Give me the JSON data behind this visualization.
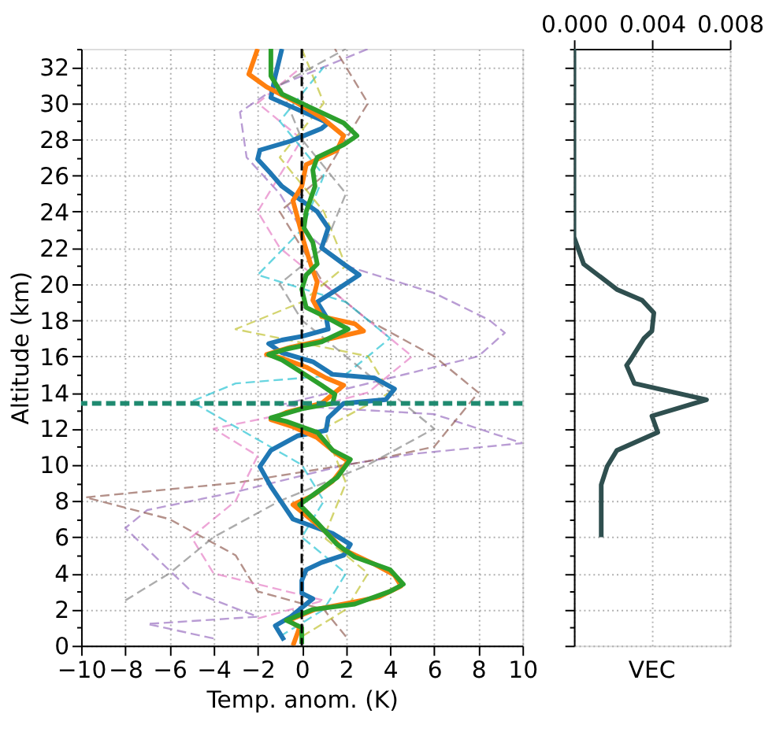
{
  "chart_data": [
    {
      "type": "line",
      "xlabel": "Temp. anom. (K)",
      "ylabel": "Altitude (km)",
      "xlim": [
        -10,
        10
      ],
      "ylim": [
        0,
        33
      ],
      "xticks": [
        {
          "value": -10,
          "label": "−10"
        },
        {
          "value": -8,
          "label": "−8"
        },
        {
          "value": -6,
          "label": "−6"
        },
        {
          "value": -4,
          "label": "−4"
        },
        {
          "value": -2,
          "label": "−2"
        },
        0,
        2,
        4,
        6,
        8,
        10
      ],
      "yticks": [
        0,
        {
          "value": 1,
          "label": null
        },
        2,
        {
          "value": 3,
          "label": null
        },
        4,
        {
          "value": 5,
          "label": null
        },
        6,
        {
          "value": 7,
          "label": null
        },
        8,
        {
          "value": 9,
          "label": null
        },
        10,
        {
          "value": 11,
          "label": null
        },
        12,
        {
          "value": 13,
          "label": null
        },
        14,
        {
          "value": 15,
          "label": null
        },
        16,
        {
          "value": 17,
          "label": null
        },
        18,
        {
          "value": 19,
          "label": null
        },
        20,
        {
          "value": 21,
          "label": null
        },
        22,
        {
          "value": 23,
          "label": null
        },
        24,
        {
          "value": 25,
          "label": null
        },
        26,
        {
          "value": 27,
          "label": null
        },
        28,
        {
          "value": 29,
          "label": null
        },
        30,
        {
          "value": 31,
          "label": null
        },
        32,
        {
          "value": 33,
          "label": null
        }
      ],
      "grid": true,
      "series": [
        {
          "color": "#9467bd",
          "line_style": "dashed",
          "x": [
            -4,
            -7,
            -2,
            -5,
            -8,
            -7,
            -3,
            2,
            5,
            10,
            6,
            -1,
            8,
            9.2,
            8.5,
            6,
            2,
            0,
            -1,
            -2.5,
            -2.8,
            -1,
            1,
            3
          ],
          "values": [
            0.4,
            1.2,
            1.6,
            3,
            6.5,
            7.5,
            8.5,
            10,
            10.6,
            11.2,
            12.8,
            13.3,
            16,
            17.3,
            18,
            19.5,
            21,
            23,
            25,
            27,
            29.5,
            31,
            32,
            33
          ]
        },
        {
          "color": "#8c564b",
          "line_style": "dashed",
          "x": [
            2,
            1,
            -2,
            -3,
            -6,
            -9.8,
            -3,
            3,
            6,
            8,
            6,
            3,
            1,
            0,
            -1,
            1,
            2,
            3,
            2,
            1.5
          ],
          "values": [
            0.5,
            2,
            3,
            5,
            7,
            8.2,
            9,
            10.2,
            11,
            14,
            16,
            18,
            20,
            22,
            24,
            26,
            28,
            30,
            32,
            33
          ]
        },
        {
          "color": "#e377c2",
          "line_style": "dashed",
          "x": [
            -2,
            1,
            -4,
            -5,
            -3,
            -2,
            -4,
            0,
            3,
            5,
            3,
            1,
            -1,
            -2,
            -1,
            0,
            -2,
            0
          ],
          "values": [
            1.5,
            2.5,
            4,
            6,
            8,
            10.5,
            12,
            13,
            14,
            16,
            18,
            20,
            22,
            24,
            26,
            28,
            30,
            32
          ]
        },
        {
          "color": "#17becf",
          "line_style": "dashed",
          "x": [
            -1,
            1,
            2,
            0,
            1,
            0,
            -5,
            -3,
            2,
            4,
            2,
            -2,
            0,
            1,
            -1,
            1
          ],
          "values": [
            0.5,
            2,
            4,
            6,
            8,
            10,
            13.5,
            14.5,
            15,
            17,
            19,
            20.5,
            23,
            26,
            29,
            32
          ]
        },
        {
          "color": "#bcbd22",
          "line_style": "dashed",
          "x": [
            0,
            2,
            3,
            1,
            2,
            1,
            4,
            3,
            -3,
            0,
            2,
            1,
            -1,
            1,
            0
          ],
          "values": [
            0.5,
            2,
            4,
            6,
            9,
            12,
            14,
            16,
            17.5,
            19,
            21,
            24,
            27,
            30,
            33
          ]
        },
        {
          "color": "#7f7f7f",
          "line_style": "dashed",
          "x": [
            -8,
            -6,
            -4,
            -1,
            3,
            6,
            4,
            2,
            0,
            -1,
            1,
            2,
            0,
            -1,
            2
          ],
          "values": [
            2.5,
            4,
            6,
            8,
            10,
            12,
            14,
            16,
            18,
            20,
            22,
            25,
            28,
            31,
            33
          ]
        },
        {
          "color": "#1f77b4",
          "line_style": "solid",
          "x": [
            -0.8,
            -1.2,
            -0.5,
            0.5,
            0,
            0,
            0.2,
            0.9,
            1.9,
            2.2,
            1.4,
            0.5,
            -0.4,
            -0.9,
            -1.4,
            -1.9,
            -1.4,
            -0.2,
            1.1,
            1.2,
            1.9,
            3.8,
            4.2,
            3.3,
            1.4,
            0.5,
            -0.9,
            -1.5,
            -0.9,
            0,
            1.2,
            1.1,
            0.7,
            1.6,
            2.6,
            1.9,
            0.9,
            1.2,
            0.7,
            0,
            -0.9,
            -1.4,
            -2.0,
            -1.9,
            -0.5,
            0.9,
            1.2,
            -1.4,
            -1.2,
            -0.9
          ],
          "values": [
            0.3,
            1.1,
            1.6,
            2.6,
            2.9,
            3.6,
            4.2,
            4.6,
            5.0,
            5.6,
            6.2,
            6.6,
            7.0,
            7.9,
            8.8,
            9.9,
            10.8,
            11.6,
            11.9,
            12.6,
            13.4,
            13.6,
            14.2,
            14.8,
            15.0,
            15.7,
            16.2,
            16.7,
            16.9,
            17.1,
            17.5,
            18.2,
            19.0,
            19.7,
            20.5,
            21.1,
            22.0,
            23.1,
            24.0,
            24.6,
            25.4,
            26.1,
            26.9,
            27.4,
            27.9,
            28.6,
            28.9,
            30.3,
            31.5,
            33
          ]
        },
        {
          "color": "#ff7f0e",
          "line_style": "solid",
          "x": [
            -0.4,
            -0.1,
            -0.6,
            0.6,
            1.9,
            3.5,
            4.5,
            4.2,
            3.3,
            1.9,
            0.9,
            0.2,
            -0.4,
            0.5,
            1.4,
            2.1,
            1.6,
            0.7,
            -0.4,
            -1.4,
            -0.7,
            0.9,
            1.9,
            1.1,
            0.2,
            -0.9,
            -1.6,
            -0.5,
            1.4,
            2.8,
            2.4,
            0.9,
            0.5,
            0.7,
            0.4,
            0.1,
            -0.2,
            -0.4,
            0,
            0.2,
            1.6,
            1.9,
            0.9,
            -0.2,
            -1.6,
            -2.4,
            -2.0
          ],
          "values": [
            0,
            1.0,
            1.4,
            2.0,
            2.3,
            2.7,
            3.3,
            3.9,
            4.5,
            5.3,
            6.5,
            7.2,
            7.8,
            8.3,
            9.1,
            10.2,
            10.6,
            11.5,
            12.1,
            12.5,
            12.9,
            13.4,
            14.4,
            14.8,
            15.4,
            15.9,
            16.1,
            16.5,
            17.0,
            17.4,
            17.8,
            18.2,
            19.1,
            20.1,
            21.1,
            22.3,
            23.7,
            24.6,
            25.4,
            26.6,
            27.4,
            28.2,
            29.2,
            30.0,
            30.9,
            31.6,
            33
          ]
        },
        {
          "color": "#2ca02c",
          "line_style": "solid",
          "x": [
            0,
            0,
            -0.7,
            0.5,
            2.4,
            4.0,
            4.6,
            4.0,
            2.4,
            1.6,
            0.7,
            -0.1,
            0.7,
            1.6,
            2.2,
            1.4,
            0.7,
            -0.7,
            -1.4,
            0,
            1.4,
            1.5,
            0.9,
            0,
            -0.9,
            -1.5,
            -0.7,
            0.9,
            2.1,
            1.2,
            0.2,
            0,
            0.2,
            0.7,
            0.5,
            0.1,
            0.2,
            0.6,
            0.5,
            0.7,
            1.9,
            2.5,
            1.9,
            0.5,
            -0.9,
            -1.4,
            -1.4
          ],
          "values": [
            0.1,
            1.0,
            1.4,
            2.0,
            2.3,
            3.0,
            3.4,
            4.2,
            4.9,
            5.6,
            6.8,
            7.8,
            8.5,
            9.3,
            10.3,
            10.8,
            11.8,
            12.4,
            12.6,
            13.1,
            13.4,
            13.9,
            14.4,
            15.1,
            15.8,
            16.1,
            16.4,
            16.8,
            17.5,
            18.1,
            18.7,
            19.7,
            20.5,
            21.1,
            22.3,
            23.1,
            24.0,
            25.4,
            26.3,
            27.0,
            27.7,
            28.2,
            28.9,
            29.7,
            30.5,
            31.5,
            33
          ]
        }
      ],
      "ref_lines": [
        {
          "axis": "x",
          "value": 0,
          "color": "#000000",
          "line_style": "dashed"
        },
        {
          "axis": "y",
          "value": 13.4,
          "color": "#1f8a70",
          "line_style": "dashed"
        }
      ]
    },
    {
      "type": "line",
      "xlabel": "VEC",
      "xlim": [
        0,
        0.008
      ],
      "xticks": [
        {
          "value": 0,
          "label": "0.000"
        },
        0.004,
        0.008
      ],
      "ylim": [
        0,
        33
      ],
      "yticks": [
        0,
        {
          "value": 1,
          "label": null
        },
        2,
        {
          "value": 3,
          "label": null
        },
        4,
        {
          "value": 5,
          "label": null
        },
        6,
        {
          "value": 7,
          "label": null
        },
        8,
        {
          "value": 9,
          "label": null
        },
        10,
        {
          "value": 11,
          "label": null
        },
        12,
        {
          "value": 13,
          "label": null
        },
        14,
        {
          "value": 15,
          "label": null
        },
        16,
        {
          "value": 17,
          "label": null
        },
        18,
        {
          "value": 19,
          "label": null
        },
        20,
        {
          "value": 21,
          "label": null
        },
        22,
        {
          "value": 23,
          "label": null
        },
        24,
        {
          "value": 25,
          "label": null
        },
        26,
        {
          "value": 27,
          "label": null
        },
        28,
        {
          "value": 29,
          "label": null
        },
        30,
        {
          "value": 31,
          "label": null
        },
        32,
        {
          "value": 33,
          "label": null
        }
      ],
      "grid": true,
      "tick_labels": "x",
      "series": [
        {
          "color": "#2f4f4f",
          "line_style": "solid",
          "x": [
            0,
            0,
            0.0005,
            0.0022,
            0.0035,
            0.0041,
            0.004,
            0.0036,
            0.0029,
            0.0027,
            0.0031,
            0.0068,
            0.004,
            0.0043,
            0.0022,
            0.0017,
            0.0014,
            0.0014
          ],
          "values": [
            33,
            22.6,
            21.1,
            19.7,
            19.1,
            18.4,
            17.4,
            17.0,
            15.8,
            15.5,
            14.5,
            13.6,
            12.7,
            11.8,
            10.8,
            9.9,
            8.9,
            6.0
          ]
        }
      ]
    }
  ]
}
